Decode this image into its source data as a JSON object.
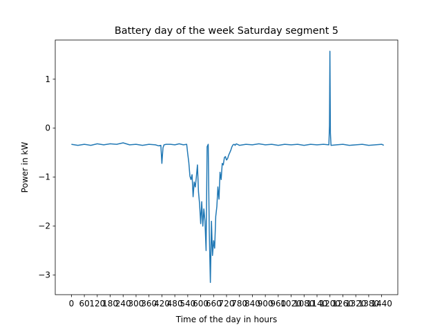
{
  "chart_data": {
    "type": "line",
    "title": "Battery day of the week Saturday segment 5",
    "xlabel": "Time of the day in hours",
    "ylabel": "Power in kW",
    "xlim": [
      -75,
      1515
    ],
    "ylim": [
      -3.4,
      1.8
    ],
    "grid": false,
    "legend": "none",
    "x_ticks": [
      {
        "value": 0,
        "label": "0"
      },
      {
        "value": 60,
        "label": "60"
      },
      {
        "value": 120,
        "label": "120"
      },
      {
        "value": 180,
        "label": "180"
      },
      {
        "value": 240,
        "label": "240"
      },
      {
        "value": 300,
        "label": "300"
      },
      {
        "value": 360,
        "label": "360"
      },
      {
        "value": 420,
        "label": "420"
      },
      {
        "value": 480,
        "label": "480"
      },
      {
        "value": 540,
        "label": "540"
      },
      {
        "value": 600,
        "label": "600"
      },
      {
        "value": 660,
        "label": "660"
      },
      {
        "value": 720,
        "label": "720"
      },
      {
        "value": 780,
        "label": "780"
      },
      {
        "value": 840,
        "label": "840"
      },
      {
        "value": 900,
        "label": "900"
      },
      {
        "value": 960,
        "label": "960"
      },
      {
        "value": 1020,
        "label": "1020"
      },
      {
        "value": 1080,
        "label": "1080"
      },
      {
        "value": 1140,
        "label": "1140"
      },
      {
        "value": 1200,
        "label": "1200"
      },
      {
        "value": 1260,
        "label": "1260"
      },
      {
        "value": 1320,
        "label": "1320"
      },
      {
        "value": 1380,
        "label": "1380"
      },
      {
        "value": 1440,
        "label": "1440"
      }
    ],
    "y_ticks": [
      {
        "value": -3,
        "label": "−3"
      },
      {
        "value": -2,
        "label": "−2"
      },
      {
        "value": -1,
        "label": "−1"
      },
      {
        "value": 0,
        "label": "0"
      },
      {
        "value": 1,
        "label": "1"
      }
    ],
    "series": [
      {
        "color": "#1f77b4",
        "x": [
          0,
          30,
          60,
          90,
          120,
          150,
          180,
          210,
          240,
          270,
          300,
          330,
          360,
          390,
          405,
          415,
          420,
          425,
          430,
          440,
          460,
          480,
          500,
          520,
          535,
          540,
          545,
          550,
          555,
          560,
          565,
          570,
          575,
          580,
          585,
          590,
          595,
          600,
          605,
          610,
          615,
          620,
          625,
          630,
          635,
          640,
          645,
          650,
          655,
          660,
          665,
          670,
          675,
          680,
          685,
          690,
          695,
          700,
          705,
          710,
          715,
          720,
          725,
          730,
          735,
          740,
          745,
          750,
          755,
          760,
          765,
          770,
          780,
          810,
          840,
          870,
          900,
          930,
          960,
          990,
          1020,
          1050,
          1080,
          1110,
          1140,
          1170,
          1195,
          1198,
          1200,
          1202,
          1205,
          1230,
          1260,
          1290,
          1320,
          1350,
          1380,
          1410,
          1440,
          1450
        ],
        "y": [
          -0.33,
          -0.35,
          -0.33,
          -0.35,
          -0.32,
          -0.34,
          -0.32,
          -0.33,
          -0.3,
          -0.34,
          -0.33,
          -0.35,
          -0.33,
          -0.34,
          -0.36,
          -0.35,
          -0.72,
          -0.4,
          -0.34,
          -0.33,
          -0.33,
          -0.34,
          -0.32,
          -0.34,
          -0.33,
          -0.52,
          -0.7,
          -0.98,
          -1.05,
          -0.95,
          -1.4,
          -1.1,
          -1.2,
          -1.0,
          -0.75,
          -1.3,
          -1.55,
          -1.95,
          -1.5,
          -2.0,
          -1.65,
          -1.9,
          -2.5,
          -0.38,
          -0.33,
          -2.1,
          -3.15,
          -1.9,
          -2.6,
          -2.3,
          -2.45,
          -1.8,
          -1.6,
          -1.2,
          -1.45,
          -0.9,
          -1.05,
          -0.72,
          -0.75,
          -0.6,
          -0.58,
          -0.65,
          -0.62,
          -0.55,
          -0.5,
          -0.45,
          -0.38,
          -0.34,
          -0.33,
          -0.35,
          -0.32,
          -0.33,
          -0.35,
          -0.33,
          -0.34,
          -0.32,
          -0.34,
          -0.33,
          -0.35,
          -0.33,
          -0.34,
          -0.33,
          -0.35,
          -0.33,
          -0.34,
          -0.33,
          -0.34,
          0.05,
          1.57,
          -0.1,
          -0.35,
          -0.34,
          -0.33,
          -0.35,
          -0.34,
          -0.33,
          -0.35,
          -0.34,
          -0.33,
          -0.35
        ]
      }
    ]
  }
}
